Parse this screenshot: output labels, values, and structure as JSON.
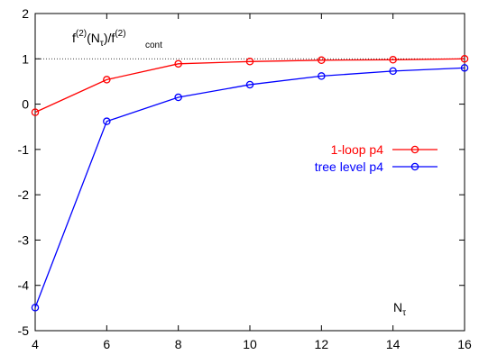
{
  "chart_data": {
    "type": "line",
    "x": [
      4,
      6,
      8,
      10,
      12,
      14,
      16
    ],
    "xlim": [
      4,
      16
    ],
    "ylim": [
      -5,
      2
    ],
    "xticks": [
      "4",
      "6",
      "8",
      "10",
      "12",
      "14",
      "16"
    ],
    "yticks": [
      "-5",
      "-4",
      "-3",
      "-2",
      "-1",
      "0",
      "1",
      "2"
    ],
    "reference_line": {
      "y": 1,
      "style": "dotted",
      "color": "#000000"
    },
    "grid": false,
    "legend_position": "center-right",
    "annotation_ratio": {
      "f": "f",
      "sup1": "(2)",
      "N": "(N",
      "tau_sub": "τ",
      "mid": ")/f",
      "sup2": "(2)",
      "sub2": "cont"
    },
    "annotation_axis": {
      "N": "N",
      "tau_sub": "τ"
    },
    "series": [
      {
        "name": "1-loop p4",
        "color": "#ff0000",
        "marker": "circle",
        "values": [
          -0.18,
          0.54,
          0.89,
          0.94,
          0.97,
          0.98,
          1.0
        ]
      },
      {
        "name": "tree level p4",
        "color": "#0000ff",
        "marker": "circle",
        "values": [
          -4.49,
          -0.38,
          0.15,
          0.43,
          0.62,
          0.73,
          0.8
        ]
      }
    ]
  }
}
